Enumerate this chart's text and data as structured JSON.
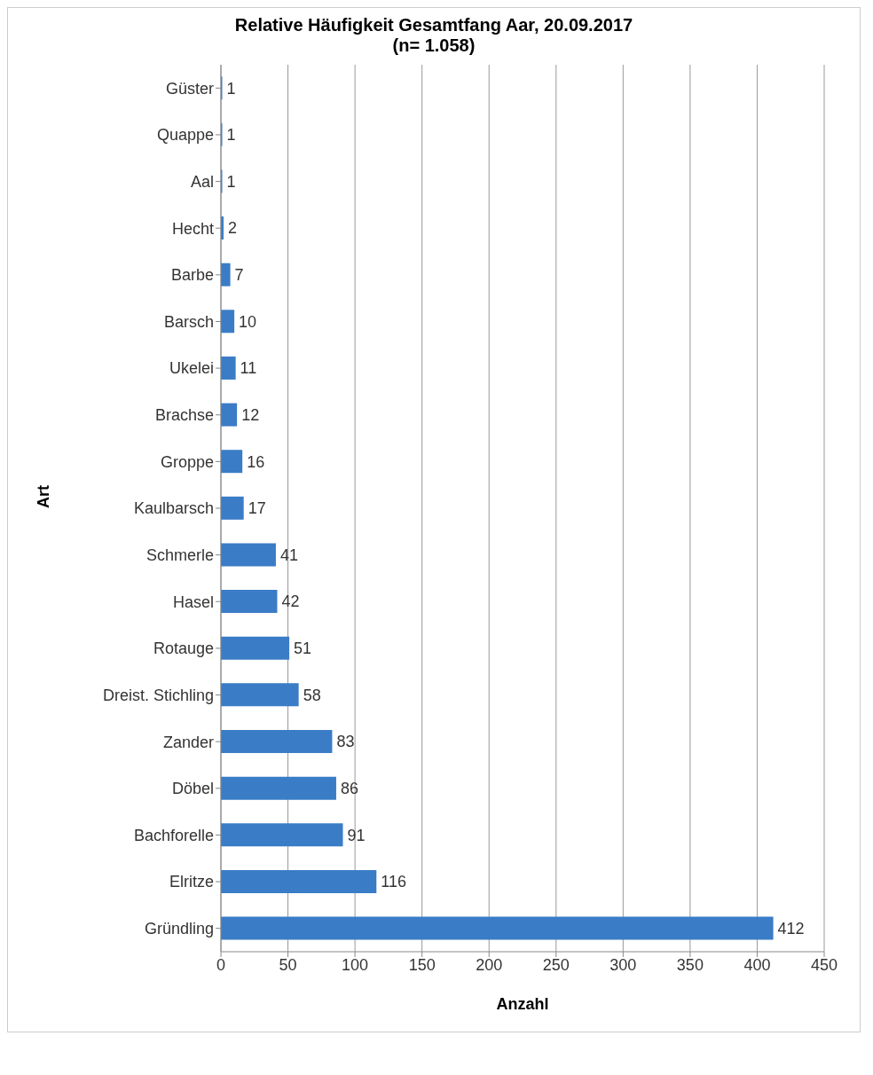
{
  "chart_data": {
    "type": "bar",
    "orientation": "horizontal",
    "title": "Relative Häufigkeit Gesamtfang Aar, 20.09.2017",
    "subtitle": "(n= 1.058)",
    "xlabel": "Anzahl",
    "ylabel": "Art",
    "categories": [
      "Güster",
      "Quappe",
      "Aal",
      "Hecht",
      "Barbe",
      "Barsch",
      "Ukelei",
      "Brachse",
      "Groppe",
      "Kaulbarsch",
      "Schmerle",
      "Hasel",
      "Rotauge",
      "Dreist. Stichling",
      "Zander",
      "Döbel",
      "Bachforelle",
      "Elritze",
      "Gründling"
    ],
    "values": [
      1,
      1,
      1,
      2,
      7,
      10,
      11,
      12,
      16,
      17,
      41,
      42,
      51,
      58,
      83,
      86,
      91,
      116,
      412
    ],
    "color": "#3a7cc6",
    "xlim": [
      0,
      450
    ],
    "xticks": [
      0,
      50,
      100,
      150,
      200,
      250,
      300,
      350,
      400,
      450
    ],
    "grid": "x",
    "data_labels": true
  }
}
